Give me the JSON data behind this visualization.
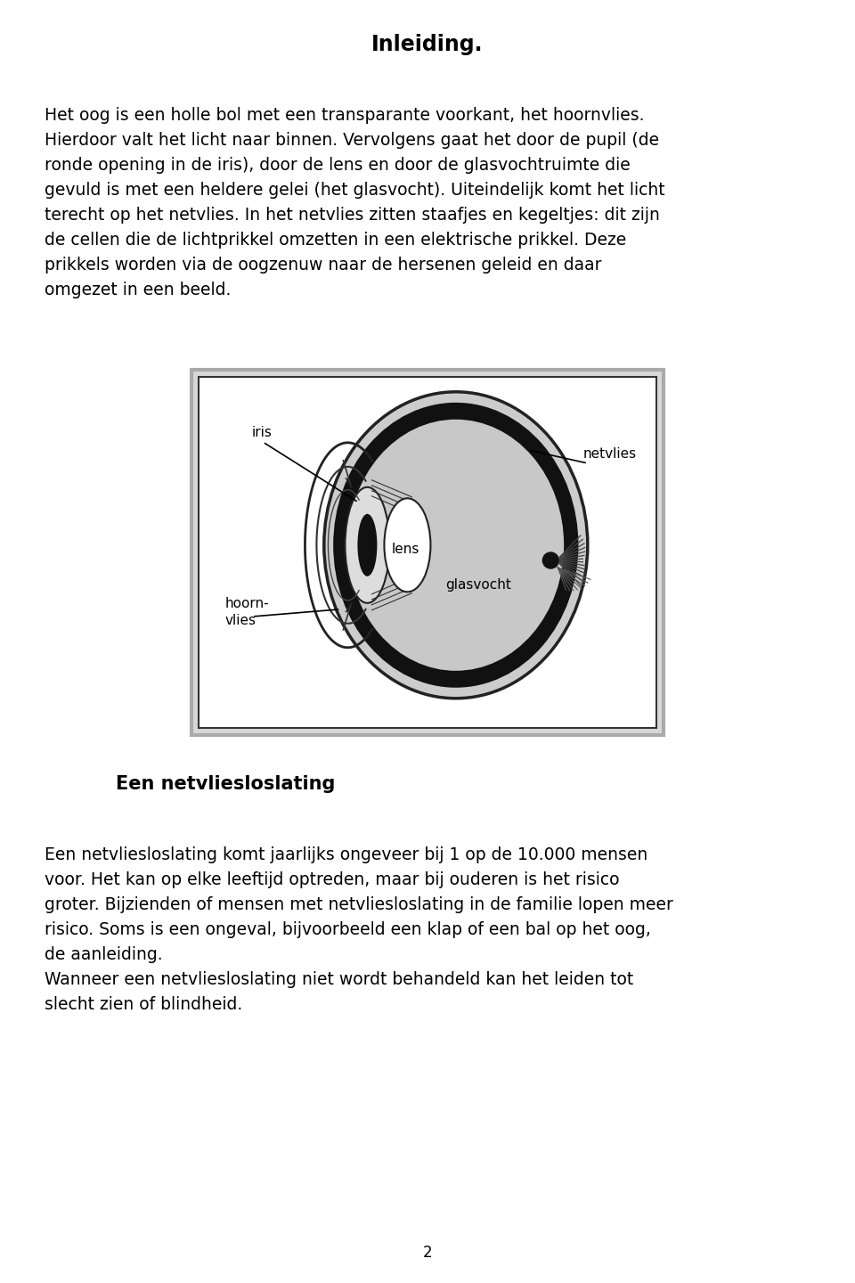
{
  "background_color": "#ffffff",
  "page_width": 9.6,
  "page_height": 14.4,
  "title": "Inleiding.",
  "title_fontsize": 17,
  "title_fontweight": "bold",
  "body_text_1": "Het oog is een holle bol met een transparante voorkant, het hoornvlies.\nHierdoor valt het licht naar binnen. Vervolgens gaat het door de pupil (de\nronde opening in de iris), door de lens en door de glasvochtruimte die\ngevuld is met een heldere gelei (het glasvocht). Uiteindelijk komt het licht\nterecht op het netvlies. In het netvlies zitten staafjes en kegeltjes: dit zijn\nde cellen die de lichtprikkel omzetten in een elektrische prikkel. Deze\nprikkels worden via de oogzenuw naar de hersenen geleid en daar\nomgezet in een beeld.",
  "body_text_1_fontsize": 13.5,
  "section_title": "Een netvliesloslating",
  "section_title_fontsize": 15,
  "section_title_fontweight": "bold",
  "body_text_2": "Een netvliesloslating komt jaarlijks ongeveer bij 1 op de 10.000 mensen\nvoor. Het kan op elke leeftijd optreden, maar bij ouderen is het risico\ngroter. Bijzienden of mensen met netvliesloslating in de familie lopen meer\nrisico. Soms is een ongeval, bijvoorbeeld een klap of een bal op het oog,\nde aanleiding.\nWanneer een netvliesloslating niet wordt behandeld kan het leiden tot\nslecht zien of blindheid.",
  "body_text_2_fontsize": 13.5,
  "page_number": "2",
  "page_number_fontsize": 12
}
